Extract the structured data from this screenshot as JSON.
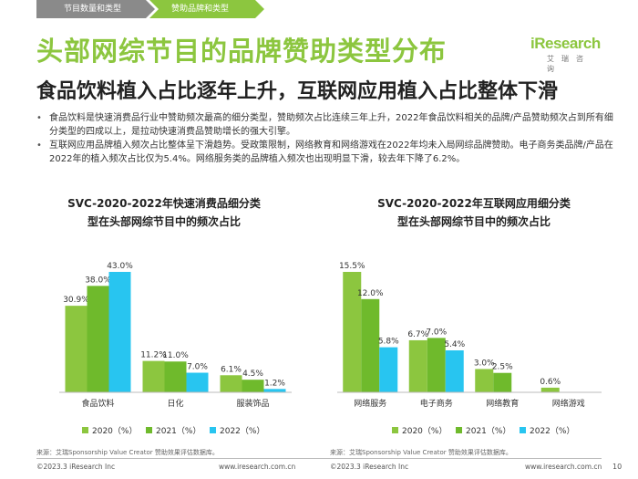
{
  "header": {
    "tabs": [
      "节目数量和类型",
      "赞助品牌和类型"
    ],
    "title": "头部网综节目的品牌赞助类型分布",
    "subtitle": "食品饮料植入占比逐年上升，互联网应用植入占比整体下滑"
  },
  "logo": {
    "text": "iResearch",
    "sub": "艾瑞咨询"
  },
  "bullets": [
    "食品饮料是快速消费品行业中赞助频次最高的细分类型，赞助频次占比连续三年上升，2022年食品饮料相关的品牌/产品赞助频次占到所有细分类型的四成以上，是拉动快速消费品赞助增长的强大引擎。",
    "互联网应用品牌植入频次占比整体呈下滑趋势。受政策限制，网络教育和网络游戏在2022年均未入局网综品牌赞助。电子商务类品牌/产品在2022年的植入频次占比仅为5.4%。网络服务类的品牌植入频次也出现明显下滑，较去年下降了6.2%。"
  ],
  "colors": {
    "s2020": "#8cc63f",
    "s2021": "#6fba2c",
    "s2022": "#28c5f0",
    "accent": "#8cc63f"
  },
  "chart_data": [
    {
      "type": "bar",
      "title": [
        "SVC-2020-2022年快速消费品细分类",
        "型在头部网综节目中的频次占比"
      ],
      "categories": [
        "食品饮料",
        "日化",
        "服装饰品"
      ],
      "series": [
        {
          "name": "2020（%）",
          "values": [
            30.9,
            11.2,
            6.1
          ],
          "labels": [
            "30.9%",
            "11.2%",
            "6.1%"
          ]
        },
        {
          "name": "2021（%）",
          "values": [
            38.0,
            11.0,
            4.5
          ],
          "labels": [
            "38.0%",
            "11.0%",
            "4.5%"
          ]
        },
        {
          "name": "2022（%）",
          "values": [
            43.0,
            7.0,
            1.2
          ],
          "labels": [
            "43.0%",
            "7.0%",
            "1.2%"
          ]
        }
      ],
      "ylim": [
        0,
        43.0
      ],
      "grid": false,
      "legend": "bottom"
    },
    {
      "type": "bar",
      "title": [
        "SVC-2020-2022年互联网应用细分类",
        "型在头部网综节目中的频次占比"
      ],
      "categories": [
        "网络服务",
        "电子商务",
        "网络教育",
        "网络游戏"
      ],
      "series": [
        {
          "name": "2020（%）",
          "values": [
            15.5,
            6.7,
            3.0,
            0.6
          ],
          "labels": [
            "15.5%",
            "6.7%",
            "3.0%",
            "0.6%"
          ]
        },
        {
          "name": "2021（%）",
          "values": [
            12.0,
            7.0,
            2.5,
            null
          ],
          "labels": [
            "12.0%",
            "7.0%",
            "2.5%",
            ""
          ]
        },
        {
          "name": "2022（%）",
          "values": [
            5.8,
            5.4,
            null,
            null
          ],
          "labels": [
            "5.8%",
            "5.4%",
            "",
            ""
          ]
        }
      ],
      "ylim": [
        0,
        15.5
      ],
      "grid": false,
      "legend": "bottom"
    }
  ],
  "sources": [
    "来源：艾瑞Sponsorship Value Creator 赞助效果评估数据库。",
    "来源：艾瑞Sponsorship Value Creator 赞助效果评估数据库。"
  ],
  "footer": {
    "left_copyright": "©2023.3 iResearch Inc",
    "left_url": "www.iresearch.com.cn",
    "right_copyright": "©2023.3 iResearch Inc",
    "right_url": "www.iresearch.com.cn",
    "page": "10"
  }
}
